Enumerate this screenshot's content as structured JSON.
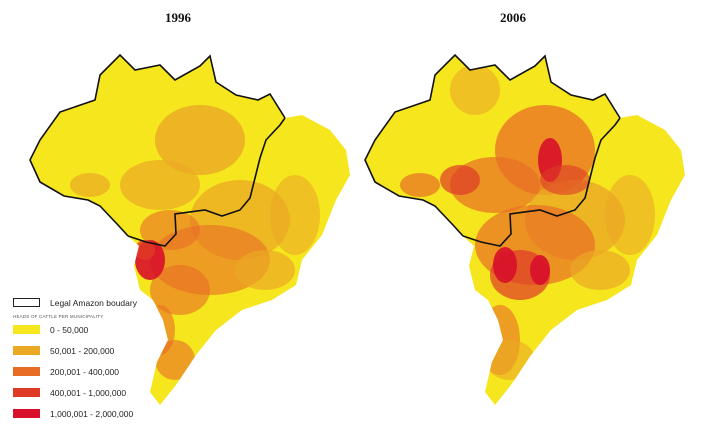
{
  "maps": [
    {
      "title": "1996"
    },
    {
      "title": "2006"
    }
  ],
  "legend": {
    "boundary_label": "Legal Amazon boudary",
    "subtitle": "HEADS OF CATTLE PER MUNICIPALITY",
    "classes": [
      {
        "label": "0 - 50,000",
        "color": "#f5e61e"
      },
      {
        "label": "50,001 - 200,000",
        "color": "#eba824"
      },
      {
        "label": "200,001 - 400,000",
        "color": "#e86d24"
      },
      {
        "label": "400,001 - 1,000,000",
        "color": "#de3a26"
      },
      {
        "label": "1,000,001 - 2,000,000",
        "color": "#d8102a"
      }
    ]
  }
}
